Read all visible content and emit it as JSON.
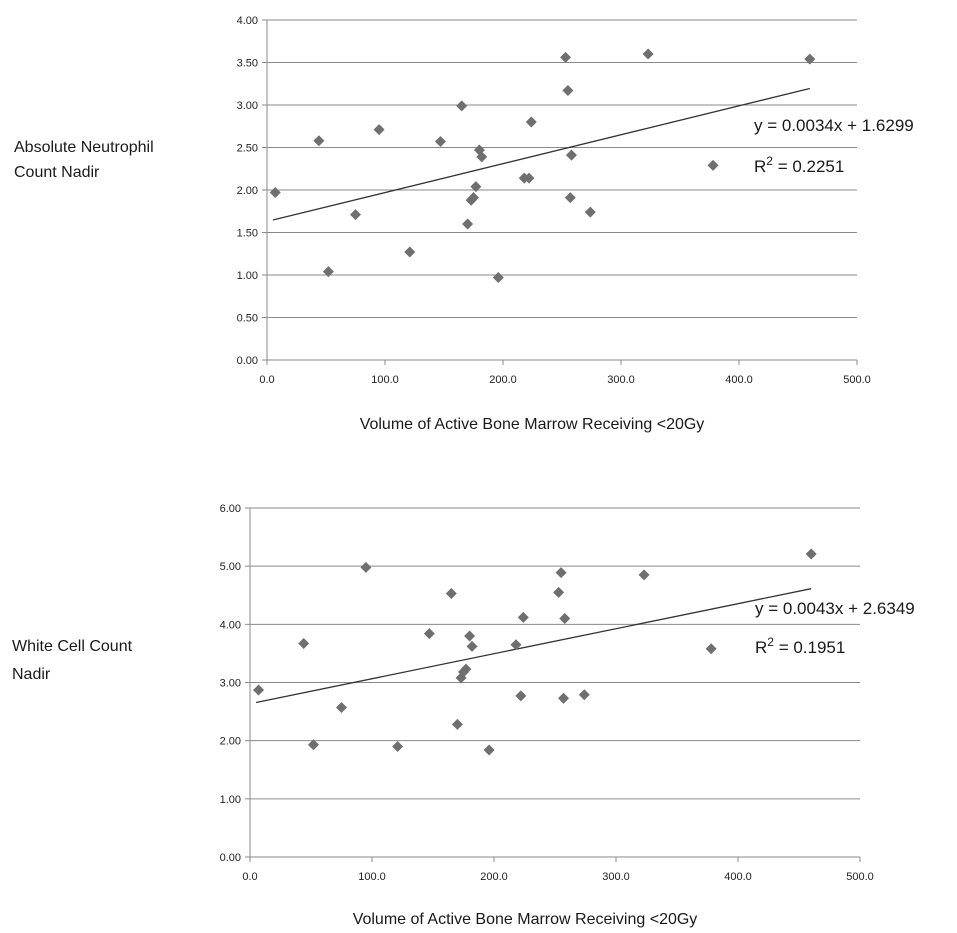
{
  "chart_data": [
    {
      "type": "scatter",
      "ylabel_lines": [
        "Absolute Neutrophil",
        "Count Nadir"
      ],
      "xlabel": "Volume of Active Bone Marrow Receiving <20Gy",
      "xlim": [
        0,
        500
      ],
      "ylim": [
        0,
        4
      ],
      "xticks": [
        "0.0",
        "100.0",
        "200.0",
        "300.0",
        "400.0",
        "500.0"
      ],
      "yticks": [
        "0.00",
        "0.50",
        "1.00",
        "1.50",
        "2.00",
        "2.50",
        "3.00",
        "3.50",
        "4.00"
      ],
      "trendline": {
        "slope": 0.0034,
        "intercept": 1.6299,
        "x_range": [
          5,
          460
        ]
      },
      "equation": "y = 0.0034x + 1.6299",
      "r2_prefix": "R",
      "r2_sup": "2",
      "r2_value": " = 0.2251",
      "grid": true,
      "points": [
        {
          "x": 7,
          "y": 1.97
        },
        {
          "x": 44,
          "y": 2.58
        },
        {
          "x": 52,
          "y": 1.04
        },
        {
          "x": 75,
          "y": 1.71
        },
        {
          "x": 95,
          "y": 2.71
        },
        {
          "x": 121,
          "y": 1.27
        },
        {
          "x": 147,
          "y": 2.57
        },
        {
          "x": 165,
          "y": 2.99
        },
        {
          "x": 170,
          "y": 1.6
        },
        {
          "x": 173,
          "y": 1.88
        },
        {
          "x": 175,
          "y": 1.91
        },
        {
          "x": 177,
          "y": 2.04
        },
        {
          "x": 180,
          "y": 2.47
        },
        {
          "x": 182,
          "y": 2.39
        },
        {
          "x": 196,
          "y": 0.97
        },
        {
          "x": 218,
          "y": 2.14
        },
        {
          "x": 222,
          "y": 2.14
        },
        {
          "x": 224,
          "y": 2.8
        },
        {
          "x": 253,
          "y": 3.56
        },
        {
          "x": 255,
          "y": 3.17
        },
        {
          "x": 257,
          "y": 1.91
        },
        {
          "x": 258,
          "y": 2.41
        },
        {
          "x": 274,
          "y": 1.74
        },
        {
          "x": 323,
          "y": 3.6
        },
        {
          "x": 378,
          "y": 2.29
        },
        {
          "x": 460,
          "y": 3.54
        }
      ]
    },
    {
      "type": "scatter",
      "ylabel_lines": [
        "White Cell Count",
        "Nadir"
      ],
      "xlabel": "Volume of Active Bone Marrow Receiving <20Gy",
      "xlim": [
        0,
        500
      ],
      "ylim": [
        0,
        6
      ],
      "xticks": [
        "0.0",
        "100.0",
        "200.0",
        "300.0",
        "400.0",
        "500.0"
      ],
      "yticks": [
        "0.00",
        "1.00",
        "2.00",
        "3.00",
        "4.00",
        "5.00",
        "6.00"
      ],
      "trendline": {
        "slope": 0.0043,
        "intercept": 2.6349,
        "x_range": [
          5,
          460
        ]
      },
      "equation": "y = 0.0043x + 2.6349",
      "r2_prefix": "R",
      "r2_sup": "2",
      "r2_value": " = 0.1951",
      "grid": true,
      "points": [
        {
          "x": 7,
          "y": 2.87
        },
        {
          "x": 44,
          "y": 3.67
        },
        {
          "x": 52,
          "y": 1.93
        },
        {
          "x": 75,
          "y": 2.57
        },
        {
          "x": 95,
          "y": 4.98
        },
        {
          "x": 121,
          "y": 1.9
        },
        {
          "x": 147,
          "y": 3.84
        },
        {
          "x": 165,
          "y": 4.53
        },
        {
          "x": 170,
          "y": 2.28
        },
        {
          "x": 173,
          "y": 3.08
        },
        {
          "x": 175,
          "y": 3.18
        },
        {
          "x": 177,
          "y": 3.23
        },
        {
          "x": 180,
          "y": 3.8
        },
        {
          "x": 182,
          "y": 3.62
        },
        {
          "x": 196,
          "y": 1.84
        },
        {
          "x": 218,
          "y": 3.65
        },
        {
          "x": 222,
          "y": 2.77
        },
        {
          "x": 224,
          "y": 4.12
        },
        {
          "x": 253,
          "y": 4.55
        },
        {
          "x": 255,
          "y": 4.89
        },
        {
          "x": 257,
          "y": 2.73
        },
        {
          "x": 258,
          "y": 4.1
        },
        {
          "x": 274,
          "y": 2.79
        },
        {
          "x": 323,
          "y": 4.85
        },
        {
          "x": 378,
          "y": 3.58
        },
        {
          "x": 460,
          "y": 5.21
        }
      ]
    }
  ]
}
